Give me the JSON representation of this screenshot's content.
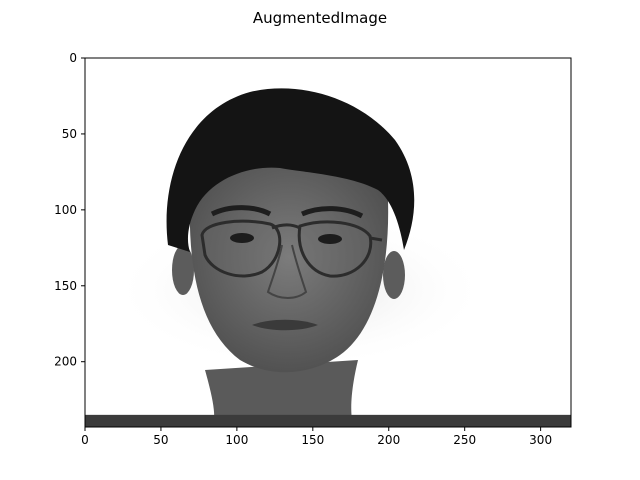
{
  "chart_data": {
    "type": "image",
    "title": "AugmentedImage",
    "xlabel": "",
    "ylabel": "",
    "image_description": "grayscale portrait photograph",
    "xlim": [
      0,
      320
    ],
    "ylim": [
      243,
      0
    ],
    "xticks": [
      0,
      50,
      100,
      150,
      200,
      250,
      300
    ],
    "yticks": [
      0,
      50,
      100,
      150,
      200
    ],
    "grid": false,
    "bottom_band_rows": [
      235,
      243
    ],
    "colors": {
      "background": "#ffffff",
      "band": "#3b3b3b",
      "hair": "#141414",
      "skin": "#6f6f6f",
      "skin_shadow": "#505050",
      "frame": "#2c2c2c",
      "axis": "#000000"
    }
  }
}
